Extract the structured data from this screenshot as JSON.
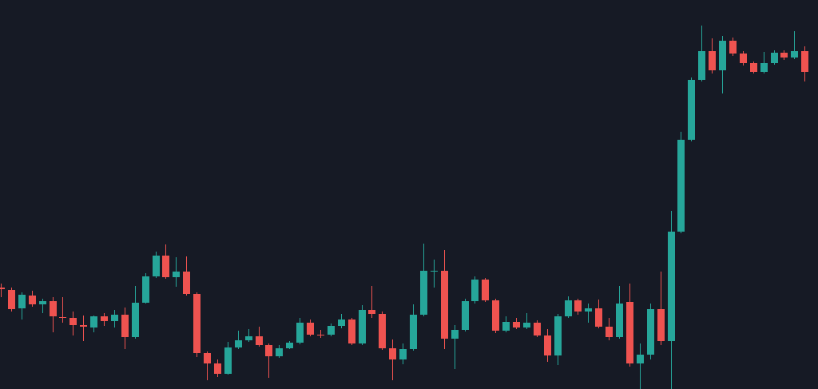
{
  "chart_data": {
    "type": "candlestick",
    "open": [
      127,
      124,
      101,
      117,
      106,
      110,
      90,
      89,
      80,
      77,
      91,
      85,
      93,
      65,
      108,
      141,
      167,
      140,
      147,
      119,
      45,
      32,
      19,
      52,
      61,
      66,
      55,
      41,
      51,
      58,
      83,
      68,
      68,
      79,
      87,
      57,
      99,
      94,
      51,
      37,
      50,
      93,
      147,
      148,
      63,
      74,
      110,
      137,
      111,
      73,
      84,
      77,
      83,
      67,
      42,
      91,
      111,
      97,
      101,
      78,
      65,
      109,
      32,
      43,
      100,
      60,
      197,
      312,
      387,
      423,
      399,
      436,
      420,
      408,
      397,
      408,
      421,
      415,
      423
    ],
    "high": [
      132,
      127,
      121,
      123,
      113,
      115,
      115,
      97,
      92,
      92,
      95,
      99,
      102,
      129,
      145,
      172,
      181,
      165,
      166,
      121,
      47,
      37,
      59,
      73,
      75,
      78,
      57,
      55,
      60,
      89,
      87,
      74,
      82,
      94,
      89,
      105,
      129,
      97,
      62,
      57,
      106,
      182,
      162,
      174,
      80,
      113,
      141,
      139,
      113,
      91,
      89,
      95,
      86,
      75,
      94,
      116,
      113,
      107,
      112,
      89,
      129,
      132,
      57,
      107,
      147,
      223,
      322,
      390,
      455,
      439,
      442,
      440,
      423,
      410,
      422,
      424,
      424,
      448,
      429
    ],
    "low": [
      115,
      97,
      87,
      103,
      95,
      71,
      83,
      67,
      60,
      71,
      79,
      77,
      50,
      63,
      107,
      139,
      138,
      128,
      117,
      40,
      11,
      15,
      18,
      50,
      59,
      53,
      14,
      39,
      50,
      56,
      66,
      64,
      66,
      76,
      55,
      55,
      89,
      49,
      11,
      31,
      48,
      91,
      127,
      50,
      25,
      72,
      107,
      109,
      70,
      71,
      75,
      75,
      65,
      34,
      30,
      89,
      93,
      83,
      76,
      61,
      63,
      28,
      0,
      37,
      55,
      0,
      195,
      310,
      385,
      395,
      370,
      417,
      405,
      395,
      395,
      406,
      412,
      413,
      385
    ],
    "close": [
      125,
      100,
      118,
      106,
      110,
      91,
      89,
      80,
      78,
      91,
      85,
      93,
      65,
      108,
      141,
      167,
      140,
      147,
      119,
      45,
      32,
      19,
      52,
      61,
      66,
      55,
      41,
      51,
      58,
      83,
      68,
      67,
      79,
      87,
      57,
      99,
      94,
      51,
      37,
      50,
      93,
      148,
      148,
      63,
      74,
      110,
      137,
      111,
      73,
      84,
      77,
      83,
      67,
      42,
      91,
      111,
      97,
      101,
      78,
      65,
      107,
      32,
      43,
      100,
      60,
      197,
      312,
      387,
      423,
      399,
      436,
      420,
      408,
      397,
      408,
      421,
      415,
      423,
      397
    ],
    "up_color": "#26a69a",
    "down_color": "#ef5350",
    "ylim": [
      0,
      487
    ]
  }
}
